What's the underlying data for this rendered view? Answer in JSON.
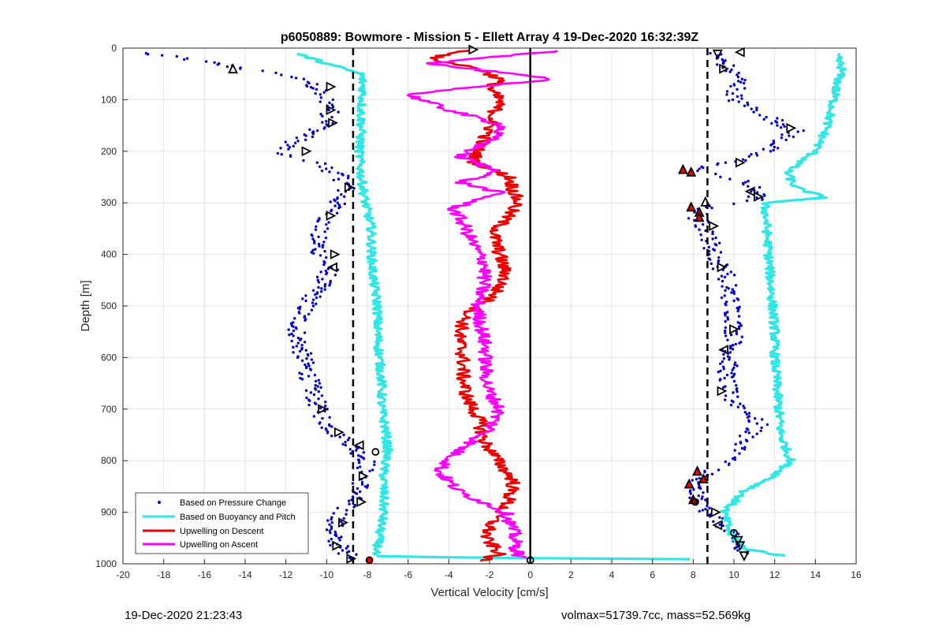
{
  "chart_data": {
    "type": "scatter",
    "title": "p6050889: Bowmore - Mission 5 - Ellett Array 4 19-Dec-2020 16:32:39Z",
    "xlabel": "Vertical Velocity [cm/s]",
    "ylabel": "Depth [m]",
    "xlim": [
      -20,
      16
    ],
    "ylim": [
      0,
      1000
    ],
    "y_reversed": true,
    "grid": true,
    "x_ticks": [
      "-20",
      "-18",
      "-16",
      "-14",
      "-12",
      "-10",
      "-8",
      "-6",
      "-4",
      "-2",
      "0",
      "2",
      "4",
      "6",
      "8",
      "10",
      "12",
      "14",
      "16"
    ],
    "y_ticks": [
      "0",
      "100",
      "200",
      "300",
      "400",
      "500",
      "600",
      "700",
      "800",
      "900",
      "1000"
    ],
    "legend_position": "bottom-left",
    "colors": {
      "pressure": "#0000cc",
      "buoyancy": "#33e6e6",
      "descent": "#ee0000",
      "ascent": "#ff00ff",
      "reference": "#000000"
    },
    "reference_lines": {
      "solid_x": 0,
      "dashed_x": [
        -8.7,
        8.7
      ]
    },
    "series": [
      {
        "name": "Based on Pressure Change",
        "style": "points",
        "branches": [
          {
            "depth": [
              10,
              20,
              40,
              60,
              80,
              100,
              120,
              150,
              180,
              205,
              220,
              250,
              270,
              300,
              330,
              360,
              400,
              430,
              460,
              500,
              540,
              580,
              620,
              660,
              700,
              740,
              770,
              800,
              830,
              860,
              900,
              940,
              970,
              990
            ],
            "velocity": [
              -19,
              -17,
              -14,
              -11,
              -10.5,
              -10,
              -9.8,
              -10,
              -11.5,
              -12.5,
              -10.5,
              -9.3,
              -9,
              -9.5,
              -10,
              -10.5,
              -10.3,
              -9.8,
              -10.3,
              -11,
              -11.5,
              -11.3,
              -11,
              -10.7,
              -10.4,
              -9.8,
              -8.8,
              -8,
              -8.2,
              -8.4,
              -9.3,
              -9.8,
              -9.3,
              -8.7
            ]
          },
          {
            "depth": [
              10,
              30,
              60,
              100,
              130,
              160,
              190,
              220,
              235,
              260,
              280,
              295,
              310,
              330,
              360,
              400,
              440,
              480,
              520,
              560,
              600,
              640,
              680,
              700,
              730,
              760,
              790,
              820,
              840,
              860,
              890,
              920,
              950,
              980
            ],
            "velocity": [
              9,
              9.5,
              10.3,
              10,
              11.5,
              13,
              12,
              10.2,
              7.8,
              10.5,
              11.2,
              11,
              8.5,
              8.2,
              8.8,
              9,
              9.6,
              9.8,
              10,
              10,
              9.8,
              9.6,
              9.8,
              10.5,
              11.2,
              10.5,
              10,
              9,
              8,
              8.1,
              8.5,
              9.4,
              9.9,
              10.4
            ]
          }
        ]
      },
      {
        "name": "Based on Buoyancy and Pitch",
        "style": "line",
        "branches": [
          {
            "depth": [
              10,
              30,
              50,
              80,
              120,
              160,
              200,
              250,
              300,
              350,
              400,
              450,
              500,
              550,
              600,
              650,
              700,
              740,
              780,
              820,
              860,
              900,
              940,
              970,
              985
            ],
            "velocity": [
              -11.5,
              -10,
              -8.3,
              -8.2,
              -8.3,
              -8.3,
              -8.4,
              -8.3,
              -8.1,
              -7.8,
              -7.8,
              -7.7,
              -7.5,
              -7.5,
              -7.4,
              -7.3,
              -7.3,
              -7.1,
              -7.0,
              -7.2,
              -7.2,
              -7.2,
              -7.4,
              -7.5,
              -7.7
            ]
          },
          {
            "depth": [
              10,
              40,
              80,
              120,
              160,
              200,
              240,
              270,
              290,
              300,
              340,
              400,
              450,
              500,
              550,
              600,
              650,
              700,
              750,
              800,
              830,
              860,
              900,
              940,
              970,
              985
            ],
            "velocity": [
              15,
              15.3,
              15,
              14.8,
              14.5,
              14,
              12.6,
              13,
              14.5,
              11.5,
              11.6,
              11.7,
              11.8,
              11.9,
              12,
              12,
              12.1,
              12.2,
              12.3,
              12.8,
              12,
              10.5,
              9.5,
              9.8,
              10.5,
              12.5
            ]
          },
          {
            "depth": [
              985,
              988,
              990,
              992
            ],
            "velocity": [
              -7.7,
              -3,
              3,
              12.5
            ]
          }
        ]
      },
      {
        "name": "Upwelling on Descent",
        "style": "line",
        "branches": [
          {
            "depth": [
              5,
              20,
              40,
              60,
              80,
              100,
              130,
              160,
              190,
              220,
              250,
              280,
              300,
              330,
              360,
              400,
              440,
              480,
              520,
              560,
              600,
              640,
              680,
              720,
              760,
              800,
              840,
              880,
              920,
              950,
              980,
              995
            ],
            "velocity": [
              -3,
              -5,
              -2.5,
              -1.5,
              -2,
              -1.5,
              -1.8,
              -2,
              -2.5,
              -2.8,
              -1,
              -0.8,
              -0.6,
              -1.2,
              -1.8,
              -1.5,
              -1.2,
              -1.8,
              -3.2,
              -3.5,
              -3.3,
              -3.3,
              -3.1,
              -2.5,
              -2.3,
              -1.6,
              -0.8,
              -1.1,
              -1.9,
              -2.2,
              -1.5,
              -2.5
            ]
          }
        ]
      },
      {
        "name": "Upwelling on Ascent",
        "style": "line",
        "branches": [
          {
            "depth": [
              5,
              30,
              60,
              90,
              120,
              150,
              180,
              210,
              240,
              260,
              280,
              310,
              340,
              380,
              420,
              460,
              500,
              540,
              580,
              620,
              660,
              700,
              740,
              780,
              820,
              860,
              900,
              940,
              970,
              990
            ],
            "velocity": [
              1.5,
              -5,
              1,
              -6,
              -4,
              -1.3,
              -2,
              -3.5,
              -1.5,
              -3.5,
              -1.5,
              -3.8,
              -3.3,
              -2.8,
              -2.2,
              -2.3,
              -2.6,
              -2.4,
              -2.2,
              -2.2,
              -2.1,
              -1.5,
              -2,
              -3.5,
              -4.5,
              -3.5,
              -1.2,
              -0.8,
              -0.7,
              -0.5
            ]
          }
        ]
      }
    ],
    "markers": [
      {
        "velocity": -2.8,
        "depth": 3,
        "shape": "tri-right",
        "red": false
      },
      {
        "velocity": -14.6,
        "depth": 40,
        "shape": "tri-up",
        "red": false
      },
      {
        "velocity": -9.8,
        "depth": 75,
        "shape": "tri-right",
        "red": false
      },
      {
        "velocity": -9.8,
        "depth": 120,
        "shape": "tri-right",
        "red": false
      },
      {
        "velocity": -9.7,
        "depth": 145,
        "shape": "tri-right",
        "red": false
      },
      {
        "velocity": -11,
        "depth": 200,
        "shape": "tri-right",
        "red": false
      },
      {
        "velocity": -8.9,
        "depth": 270,
        "shape": "tri-right",
        "red": false
      },
      {
        "velocity": -9.8,
        "depth": 325,
        "shape": "tri-right",
        "red": false
      },
      {
        "velocity": -9.6,
        "depth": 400,
        "shape": "tri-right",
        "red": false
      },
      {
        "velocity": -9.7,
        "depth": 425,
        "shape": "tri-left",
        "red": false
      },
      {
        "velocity": -10.2,
        "depth": 700,
        "shape": "tri-right",
        "red": false
      },
      {
        "velocity": -9.4,
        "depth": 745,
        "shape": "tri-right",
        "red": false
      },
      {
        "velocity": -8.4,
        "depth": 770,
        "shape": "tri-left",
        "red": false
      },
      {
        "velocity": -7.6,
        "depth": 783,
        "shape": "circle",
        "red": false
      },
      {
        "velocity": -8.2,
        "depth": 830,
        "shape": "tri-right",
        "red": false
      },
      {
        "velocity": -8.3,
        "depth": 880,
        "shape": "tri-right",
        "red": false
      },
      {
        "velocity": -9.2,
        "depth": 920,
        "shape": "tri-right",
        "red": false
      },
      {
        "velocity": -9.5,
        "depth": 965,
        "shape": "tri-right",
        "red": false
      },
      {
        "velocity": -8.8,
        "depth": 990,
        "shape": "tri-right",
        "red": false
      },
      {
        "velocity": -7.9,
        "depth": 993,
        "shape": "circle",
        "red": true
      },
      {
        "velocity": 0,
        "depth": 993,
        "shape": "circle",
        "red": false
      },
      {
        "velocity": 10.3,
        "depth": 8,
        "shape": "tri-left",
        "red": false
      },
      {
        "velocity": 9.2,
        "depth": 12,
        "shape": "tri-down",
        "red": false
      },
      {
        "velocity": 9.5,
        "depth": 40,
        "shape": "tri-right",
        "red": false
      },
      {
        "velocity": 12.8,
        "depth": 155,
        "shape": "tri-right",
        "red": false
      },
      {
        "velocity": 10.3,
        "depth": 222,
        "shape": "tri-right",
        "red": false
      },
      {
        "velocity": 7.5,
        "depth": 235,
        "shape": "tri-up",
        "red": true
      },
      {
        "velocity": 7.9,
        "depth": 240,
        "shape": "tri-up",
        "red": true
      },
      {
        "velocity": 10.8,
        "depth": 278,
        "shape": "tri-left",
        "red": false
      },
      {
        "velocity": 11.2,
        "depth": 288,
        "shape": "tri-right",
        "red": false
      },
      {
        "velocity": 8.6,
        "depth": 298,
        "shape": "tri-up",
        "red": false
      },
      {
        "velocity": 7.9,
        "depth": 308,
        "shape": "tri-up",
        "red": true
      },
      {
        "velocity": 8.3,
        "depth": 318,
        "shape": "tri-up",
        "red": true
      },
      {
        "velocity": 8.3,
        "depth": 328,
        "shape": "tri-up",
        "red": true
      },
      {
        "velocity": 9,
        "depth": 345,
        "shape": "tri-right",
        "red": false
      },
      {
        "velocity": 9.4,
        "depth": 425,
        "shape": "tri-right",
        "red": false
      },
      {
        "velocity": 10,
        "depth": 545,
        "shape": "tri-right",
        "red": false
      },
      {
        "velocity": 9.5,
        "depth": 585,
        "shape": "tri-left",
        "red": false
      },
      {
        "velocity": 9.4,
        "depth": 665,
        "shape": "tri-right",
        "red": false
      },
      {
        "velocity": 8.2,
        "depth": 820,
        "shape": "tri-up",
        "red": true
      },
      {
        "velocity": 8.5,
        "depth": 835,
        "shape": "tri-up",
        "red": true
      },
      {
        "velocity": 7.8,
        "depth": 845,
        "shape": "tri-up",
        "red": true
      },
      {
        "velocity": 8,
        "depth": 875,
        "shape": "tri-up",
        "red": true
      },
      {
        "velocity": 8.1,
        "depth": 880,
        "shape": "circle",
        "red": false
      },
      {
        "velocity": 9.1,
        "depth": 900,
        "shape": "tri-right",
        "red": false
      },
      {
        "velocity": 9.2,
        "depth": 925,
        "shape": "tri-left",
        "red": false
      },
      {
        "velocity": 10,
        "depth": 940,
        "shape": "circle",
        "red": false
      },
      {
        "velocity": 10.2,
        "depth": 955,
        "shape": "tri-down",
        "red": false
      },
      {
        "velocity": 10.3,
        "depth": 965,
        "shape": "tri-down",
        "red": false
      },
      {
        "velocity": 10.5,
        "depth": 985,
        "shape": "tri-down",
        "red": false
      }
    ]
  },
  "footer": {
    "left": "19-Dec-2020 21:23:43",
    "right": "volmax=51739.7cc, mass=52.569kg"
  }
}
